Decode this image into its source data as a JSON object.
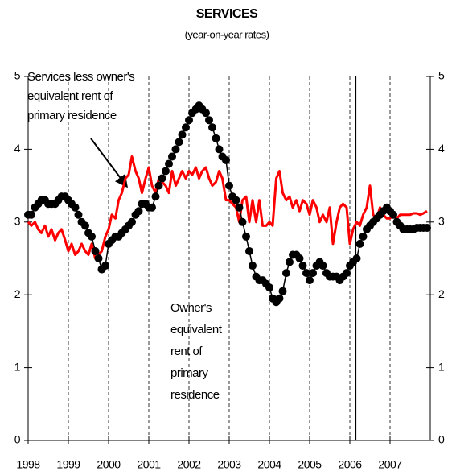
{
  "chart_data": {
    "type": "line",
    "title": "SERVICES",
    "subtitle": "(year-on-year rates)",
    "annotations": [
      {
        "lines": [
          "Services less owner's",
          "equivalent rent of",
          "primary residence"
        ]
      },
      {
        "lines": [
          "Owner's",
          "equivalent",
          "rent of",
          "primary",
          "residence"
        ]
      }
    ],
    "x": [
      1998.0,
      1998.08,
      1998.17,
      1998.25,
      1998.33,
      1998.42,
      1998.5,
      1998.58,
      1998.67,
      1998.75,
      1998.83,
      1998.92,
      1999.0,
      1999.08,
      1999.17,
      1999.25,
      1999.33,
      1999.42,
      1999.5,
      1999.58,
      1999.67,
      1999.75,
      1999.83,
      1999.92,
      2000.0,
      2000.08,
      2000.17,
      2000.25,
      2000.33,
      2000.42,
      2000.5,
      2000.58,
      2000.67,
      2000.75,
      2000.83,
      2000.92,
      2001.0,
      2001.08,
      2001.17,
      2001.25,
      2001.33,
      2001.42,
      2001.5,
      2001.58,
      2001.67,
      2001.75,
      2001.83,
      2001.92,
      2002.0,
      2002.08,
      2002.17,
      2002.25,
      2002.33,
      2002.42,
      2002.5,
      2002.58,
      2002.67,
      2002.75,
      2002.83,
      2002.92,
      2003.0,
      2003.08,
      2003.17,
      2003.25,
      2003.33,
      2003.42,
      2003.5,
      2003.58,
      2003.67,
      2003.75,
      2003.83,
      2003.92,
      2004.0,
      2004.08,
      2004.17,
      2004.25,
      2004.33,
      2004.42,
      2004.5,
      2004.58,
      2004.67,
      2004.75,
      2004.83,
      2004.92,
      2005.0,
      2005.08,
      2005.17,
      2005.25,
      2005.33,
      2005.42,
      2005.5,
      2005.58,
      2005.67,
      2005.75,
      2005.83,
      2005.92,
      2006.0,
      2006.08,
      2006.17,
      2006.25,
      2006.33,
      2006.42,
      2006.5,
      2006.58,
      2006.67,
      2006.75,
      2006.83,
      2006.92,
      2007.0,
      2007.08,
      2007.17,
      2007.25,
      2007.33,
      2007.42,
      2007.5,
      2007.58,
      2007.67,
      2007.75,
      2007.83,
      2007.92
    ],
    "series": [
      {
        "color": "#ff0000",
        "markers": false,
        "values": [
          3.0,
          2.95,
          3.0,
          2.9,
          2.85,
          2.95,
          2.8,
          2.9,
          2.75,
          2.85,
          2.9,
          2.75,
          2.6,
          2.7,
          2.55,
          2.6,
          2.7,
          2.6,
          2.55,
          2.7,
          2.5,
          2.55,
          2.6,
          2.8,
          2.9,
          3.1,
          3.05,
          3.3,
          3.4,
          3.6,
          3.65,
          3.9,
          3.7,
          3.6,
          3.4,
          3.6,
          3.75,
          3.5,
          3.4,
          3.6,
          3.55,
          3.5,
          3.4,
          3.7,
          3.5,
          3.6,
          3.7,
          3.6,
          3.7,
          3.65,
          3.75,
          3.6,
          3.7,
          3.75,
          3.6,
          3.5,
          3.55,
          3.7,
          3.6,
          3.3,
          3.3,
          3.25,
          3.2,
          3.0,
          3.3,
          3.35,
          3.0,
          3.3,
          3.0,
          3.3,
          2.95,
          2.95,
          3.0,
          2.95,
          3.6,
          3.7,
          3.4,
          3.3,
          3.35,
          3.2,
          3.3,
          3.15,
          3.3,
          3.25,
          3.1,
          3.3,
          3.2,
          3.0,
          3.1,
          3.0,
          3.2,
          2.7,
          3.0,
          3.2,
          3.25,
          3.2,
          2.7,
          2.9,
          3.0,
          2.95,
          3.1,
          3.2,
          3.5,
          3.1,
          3.05,
          3.2,
          3.1,
          3.05,
          3.05,
          3.1,
          3.05,
          3.1,
          3.1,
          3.1,
          3.1,
          3.12,
          3.12,
          3.1,
          3.12,
          3.15
        ]
      },
      {
        "color": "#000000",
        "markers": true,
        "values": [
          3.1,
          3.1,
          3.2,
          3.25,
          3.3,
          3.3,
          3.25,
          3.25,
          3.25,
          3.3,
          3.35,
          3.35,
          3.3,
          3.25,
          3.2,
          3.1,
          3.0,
          2.95,
          2.85,
          2.8,
          2.6,
          2.5,
          2.35,
          2.4,
          2.7,
          2.75,
          2.8,
          2.8,
          2.85,
          2.9,
          2.95,
          3.0,
          3.1,
          3.15,
          3.25,
          3.25,
          3.2,
          3.2,
          3.35,
          3.5,
          3.6,
          3.7,
          3.8,
          3.9,
          4.0,
          4.1,
          4.2,
          4.3,
          4.4,
          4.5,
          4.55,
          4.6,
          4.55,
          4.5,
          4.4,
          4.3,
          4.15,
          4.0,
          3.9,
          3.85,
          3.5,
          3.35,
          3.3,
          3.2,
          3.0,
          2.8,
          2.6,
          2.4,
          2.25,
          2.2,
          2.2,
          2.15,
          2.1,
          1.95,
          1.9,
          1.95,
          2.05,
          2.3,
          2.45,
          2.55,
          2.55,
          2.5,
          2.4,
          2.3,
          2.2,
          2.3,
          2.4,
          2.45,
          2.4,
          2.3,
          2.25,
          2.25,
          2.25,
          2.2,
          2.25,
          2.3,
          2.4,
          2.45,
          2.5,
          2.7,
          2.8,
          2.9,
          2.95,
          3.0,
          3.05,
          3.1,
          3.15,
          3.2,
          3.15,
          3.1,
          3.0,
          2.95,
          2.9,
          2.9,
          2.9,
          2.9,
          2.92,
          2.92,
          2.92,
          2.92
        ]
      }
    ],
    "xlim": [
      1998,
      2008
    ],
    "xticks": [
      1998,
      1999,
      2000,
      2001,
      2002,
      2003,
      2004,
      2005,
      2006,
      2007
    ],
    "ylim": [
      0,
      5
    ],
    "yticks": [
      0,
      1,
      2,
      3,
      4,
      5
    ],
    "y2lim": [
      0,
      5
    ],
    "y2ticks": [
      0,
      1,
      2,
      3,
      4,
      5
    ],
    "vline": 2006.15,
    "grid": "dashed-vertical"
  }
}
